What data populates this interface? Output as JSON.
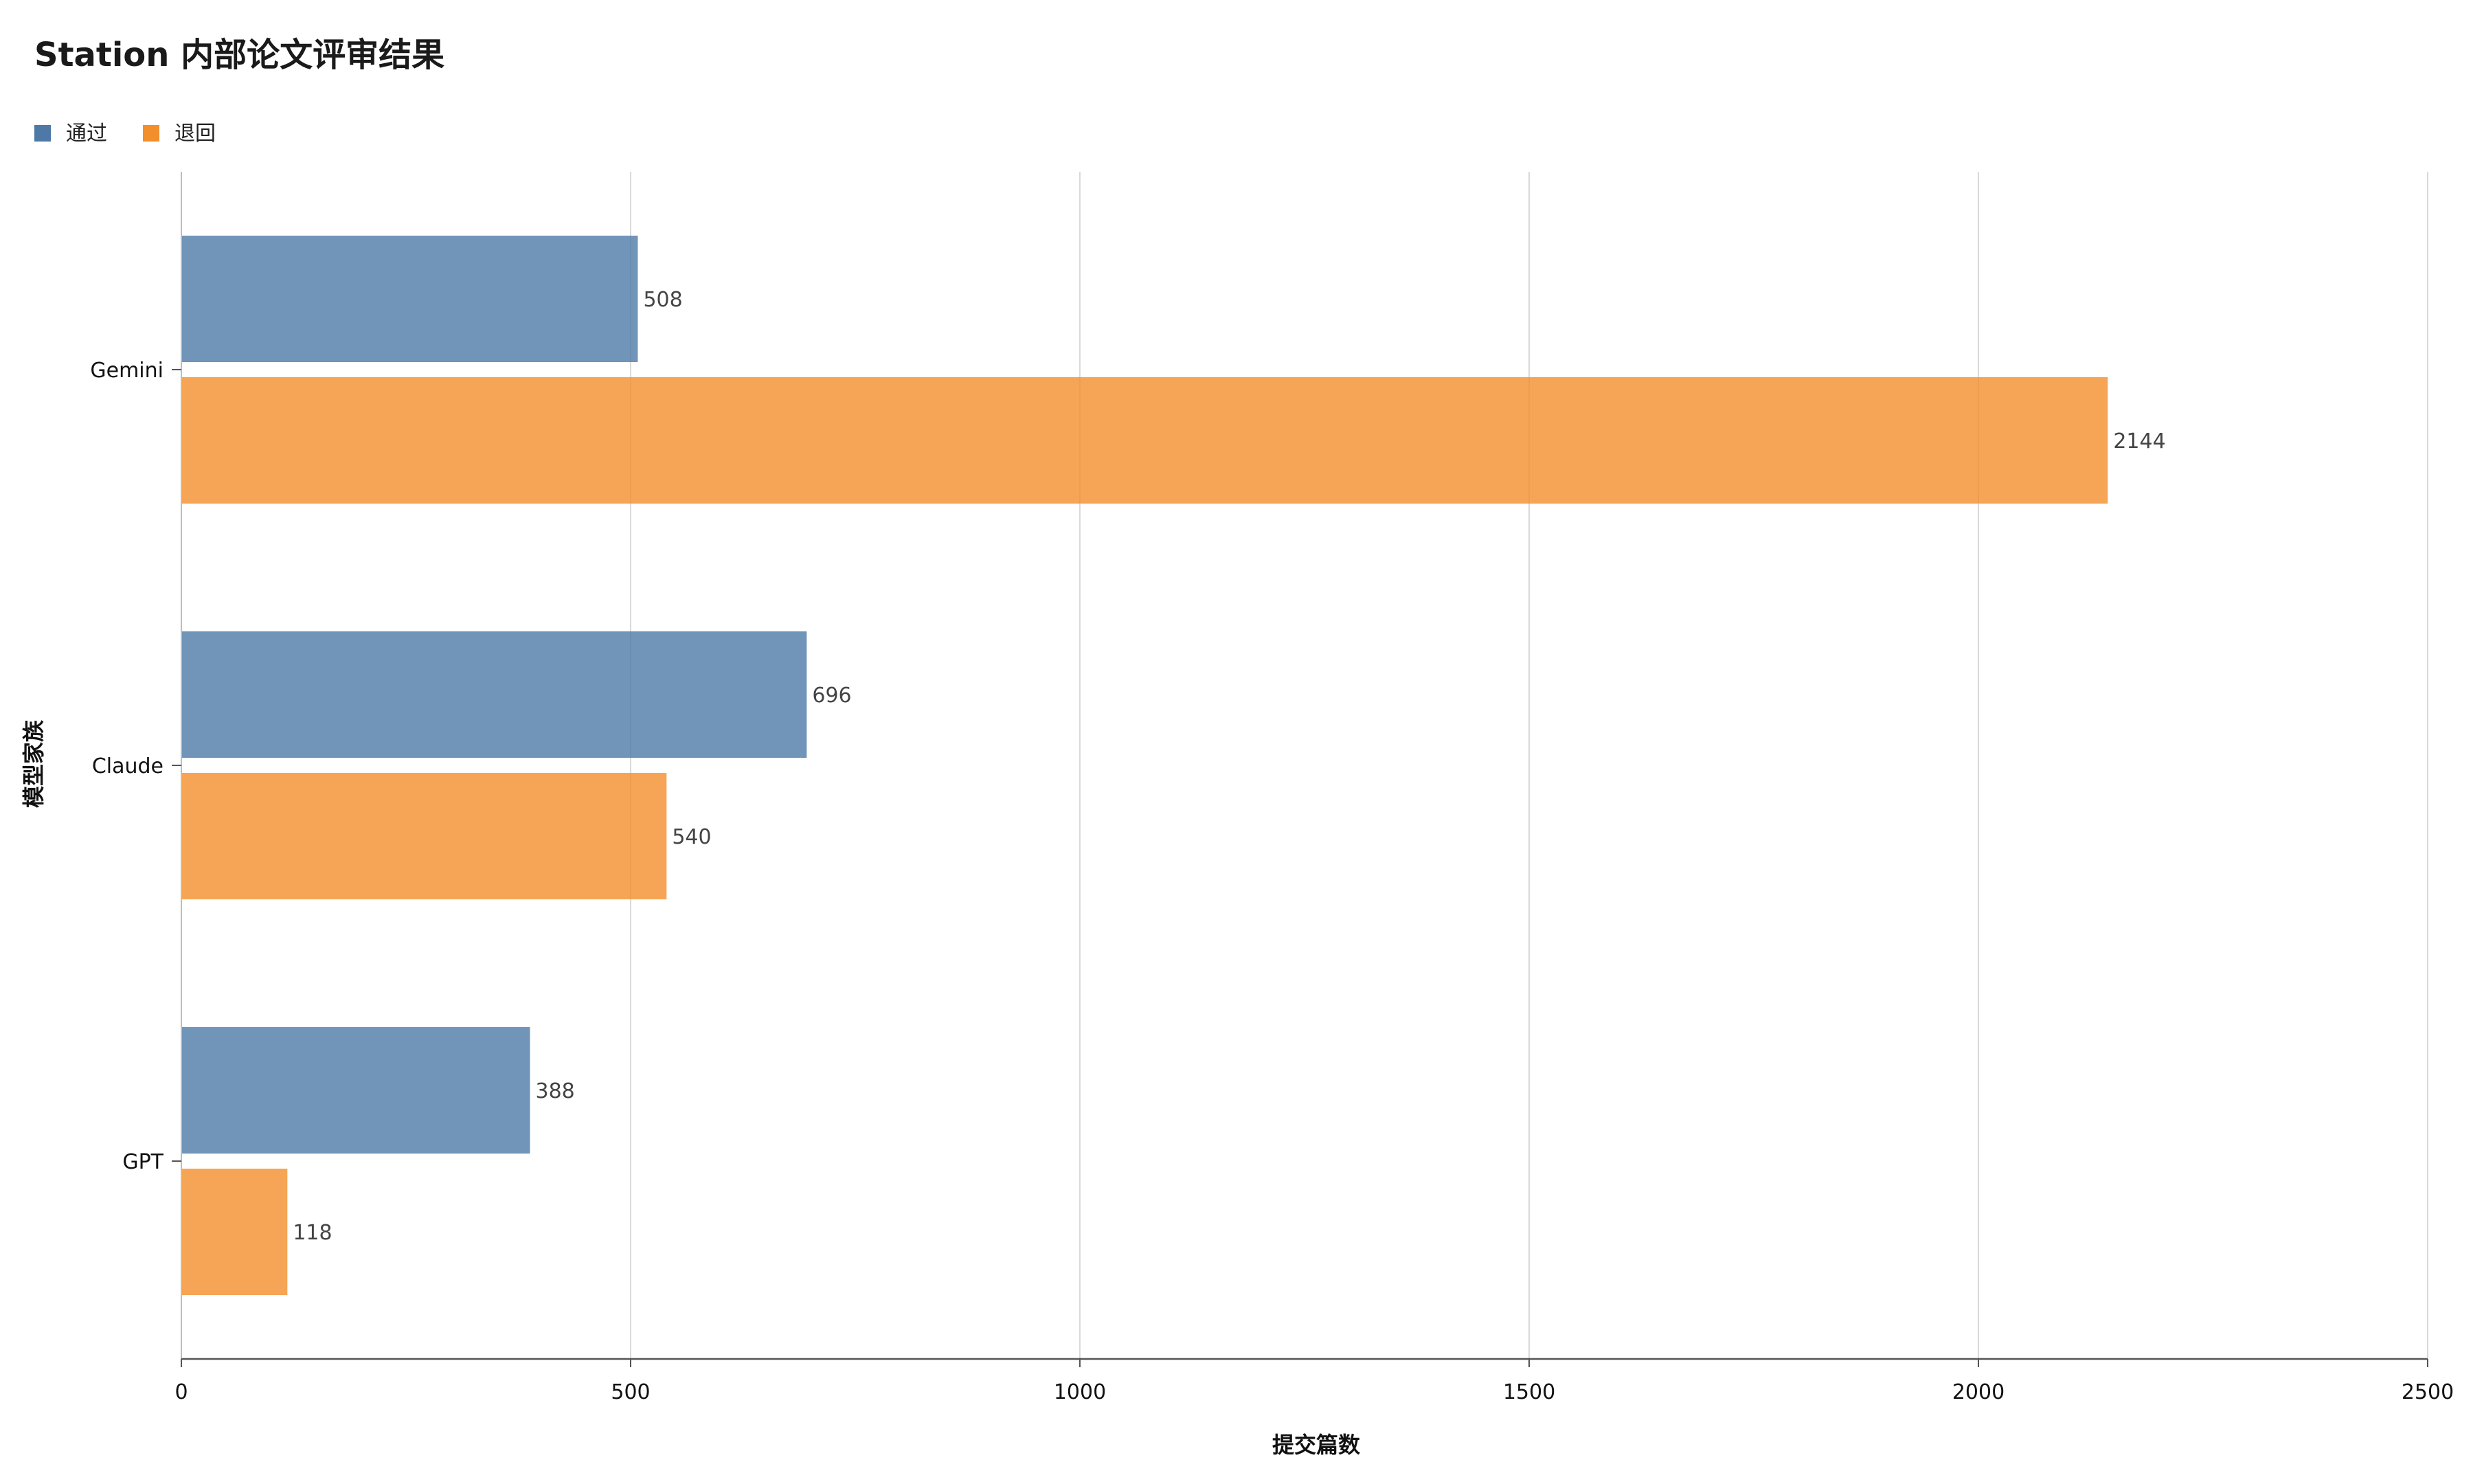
{
  "chart_data": {
    "type": "bar",
    "orientation": "horizontal",
    "title": "Station 内部论文评审结果",
    "xlabel": "提交篇数",
    "ylabel": "模型家族",
    "categories": [
      "Gemini",
      "Claude",
      "GPT"
    ],
    "series": [
      {
        "name": "通过",
        "color": "#4e79a7",
        "values": [
          508,
          696,
          388
        ]
      },
      {
        "name": "退回",
        "color": "#f28e2b",
        "values": [
          2144,
          540,
          118
        ]
      }
    ],
    "xlim": [
      0,
      2500
    ],
    "xticks": [
      0,
      500,
      1000,
      1500,
      2000,
      2500
    ],
    "grid": true,
    "legend_position": "top-left"
  }
}
